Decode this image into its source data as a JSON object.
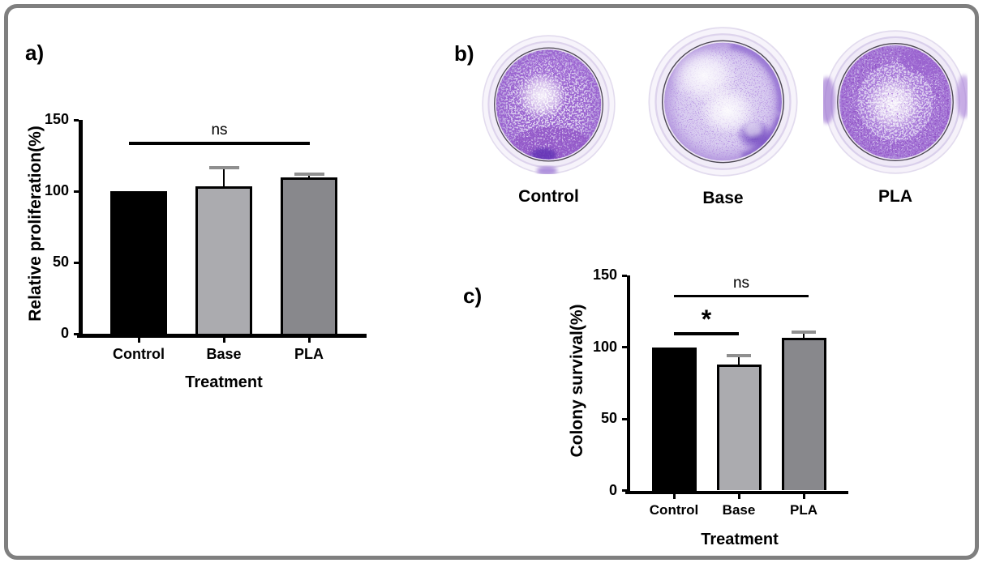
{
  "figure": {
    "background": "#ffffff",
    "border_color": "#7f7f7f",
    "panel_labels": {
      "a": "a)",
      "b": "b)",
      "c": "c)"
    }
  },
  "plates": {
    "labels": [
      "Control",
      "Base",
      "PLA"
    ],
    "colony_stain_color": "#6a3ac0"
  },
  "chart_data": [
    {
      "id": "a",
      "type": "bar",
      "title": "",
      "xlabel": "Treatment",
      "ylabel": "Relative proliferation(%)",
      "categories": [
        "Control",
        "Base",
        "PLA"
      ],
      "values": [
        100,
        103.5,
        109.5
      ],
      "errors_plus": [
        0,
        13,
        2.5
      ],
      "bar_colors": [
        "#000000",
        "#ababaf",
        "#88888c"
      ],
      "bar_border_color": "#000000",
      "error_cap_color": "#8f8f8f",
      "ylim": [
        0,
        150
      ],
      "yticks": [
        0,
        50,
        100,
        150
      ],
      "grid": false,
      "legend": "none",
      "annotations": [
        {
          "label": "ns",
          "between": [
            "Control",
            "PLA"
          ],
          "y": 134.7
        }
      ]
    },
    {
      "id": "c",
      "type": "bar",
      "title": "",
      "xlabel": "Treatment",
      "ylabel": "Colony survival(%)",
      "categories": [
        "Control",
        "Base",
        "PLA"
      ],
      "values": [
        100,
        88,
        106.5
      ],
      "errors_plus": [
        0,
        6,
        4
      ],
      "bar_colors": [
        "#000000",
        "#ababaf",
        "#88888c"
      ],
      "bar_border_color": "#000000",
      "error_cap_color": "#8f8f8f",
      "ylim": [
        0,
        150
      ],
      "yticks": [
        0,
        50,
        100,
        150
      ],
      "grid": false,
      "legend": "none",
      "annotations": [
        {
          "label": "*",
          "between": [
            "Control",
            "Base"
          ],
          "y": 110.5
        },
        {
          "label": "ns",
          "between": [
            "Control",
            "PLA"
          ],
          "y": 136.7
        }
      ]
    }
  ]
}
